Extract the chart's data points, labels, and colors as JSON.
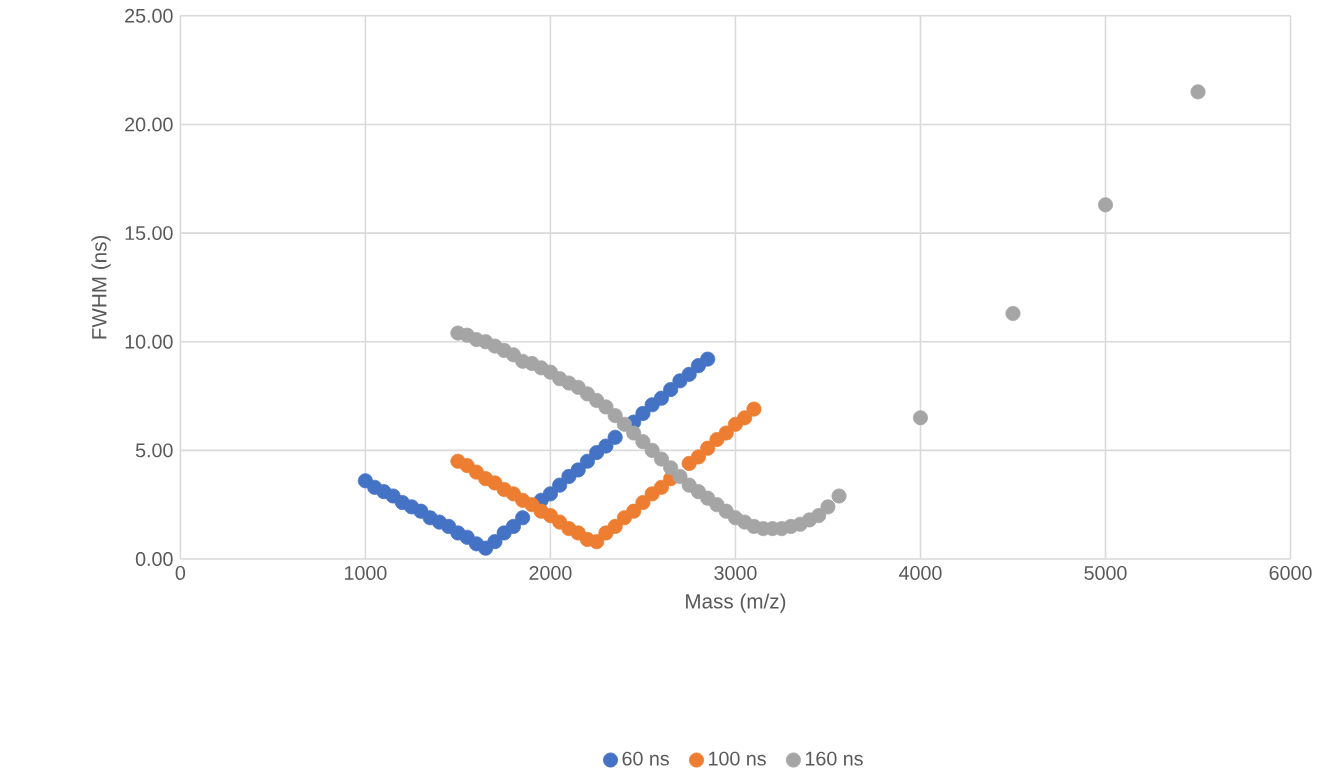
{
  "chart_data": {
    "type": "scatter",
    "xlabel": "Mass (m/z)",
    "ylabel": "FWHM (ns)",
    "xlim": [
      0,
      6000
    ],
    "xticks": [
      0,
      1000,
      2000,
      3000,
      4000,
      5000,
      6000
    ],
    "ylim": [
      0,
      25
    ],
    "yticks": [
      {
        "value": 0,
        "label": "0.00"
      },
      {
        "value": 5,
        "label": "5.00"
      },
      {
        "value": 10,
        "label": "10.00"
      },
      {
        "value": 15,
        "label": "15.00"
      },
      {
        "value": 20,
        "label": "20.00"
      },
      {
        "value": 25,
        "label": "25.00"
      }
    ],
    "grid": true,
    "legend": "bottom",
    "marker": "circle",
    "series": [
      {
        "name": "60 ns",
        "color": "#4472c4",
        "x": [
          1000,
          1050,
          1100,
          1150,
          1200,
          1250,
          1300,
          1350,
          1400,
          1450,
          1500,
          1550,
          1600,
          1650,
          1700,
          1750,
          1800,
          1850,
          1900,
          1950,
          2000,
          2050,
          2100,
          2150,
          2200,
          2250,
          2300,
          2350,
          2400,
          2450,
          2500,
          2550,
          2600,
          2650,
          2700,
          2750,
          2800,
          2850
        ],
        "values": [
          3.6,
          3.3,
          3.1,
          2.9,
          2.6,
          2.4,
          2.2,
          1.9,
          1.7,
          1.5,
          1.2,
          1.0,
          0.7,
          0.5,
          0.8,
          1.2,
          1.5,
          1.9,
          null,
          2.7,
          3.0,
          3.4,
          3.8,
          4.1,
          4.5,
          4.9,
          5.2,
          5.6,
          null,
          6.3,
          6.7,
          7.1,
          7.4,
          7.8,
          8.2,
          8.5,
          8.9,
          9.2
        ]
      },
      {
        "name": "100 ns",
        "color": "#ed7d31",
        "x": [
          1500,
          1550,
          1600,
          1650,
          1700,
          1750,
          1800,
          1850,
          1900,
          1950,
          2000,
          2050,
          2100,
          2150,
          2200,
          2250,
          2300,
          2350,
          2400,
          2450,
          2500,
          2550,
          2600,
          2650,
          2700,
          2750,
          2800,
          2850,
          2900,
          2950,
          3000,
          3050,
          3100
        ],
        "values": [
          4.5,
          4.3,
          4.0,
          3.7,
          3.5,
          3.2,
          3.0,
          2.7,
          2.5,
          2.2,
          2.0,
          1.7,
          1.4,
          1.2,
          0.9,
          0.8,
          1.2,
          1.5,
          1.9,
          2.2,
          2.6,
          3.0,
          3.3,
          3.7,
          null,
          4.4,
          4.7,
          5.1,
          5.5,
          5.8,
          6.2,
          6.5,
          6.9
        ]
      },
      {
        "name": "160 ns",
        "color": "#a5a5a5",
        "x": [
          1500,
          1550,
          1600,
          1650,
          1700,
          1750,
          1800,
          1850,
          1900,
          1950,
          2000,
          2050,
          2100,
          2150,
          2200,
          2250,
          2300,
          2350,
          2400,
          2450,
          2500,
          2550,
          2600,
          2650,
          2700,
          2750,
          2800,
          2850,
          2900,
          2950,
          3000,
          3050,
          3100,
          3150,
          3200,
          3250,
          3300,
          3350,
          3400,
          3450,
          3500,
          3560,
          4000,
          4500,
          5000,
          5500
        ],
        "values": [
          10.4,
          10.3,
          10.1,
          10.0,
          9.8,
          9.6,
          9.4,
          9.1,
          9.0,
          8.8,
          8.6,
          8.3,
          8.1,
          7.9,
          7.6,
          7.3,
          7.0,
          6.6,
          6.2,
          5.8,
          5.4,
          5.0,
          4.6,
          4.2,
          3.8,
          3.4,
          3.1,
          2.8,
          2.5,
          2.2,
          1.9,
          1.7,
          1.5,
          1.4,
          1.4,
          1.4,
          1.5,
          1.6,
          1.8,
          2.0,
          2.4,
          2.9,
          6.5,
          11.3,
          16.3,
          21.5
        ]
      }
    ]
  }
}
